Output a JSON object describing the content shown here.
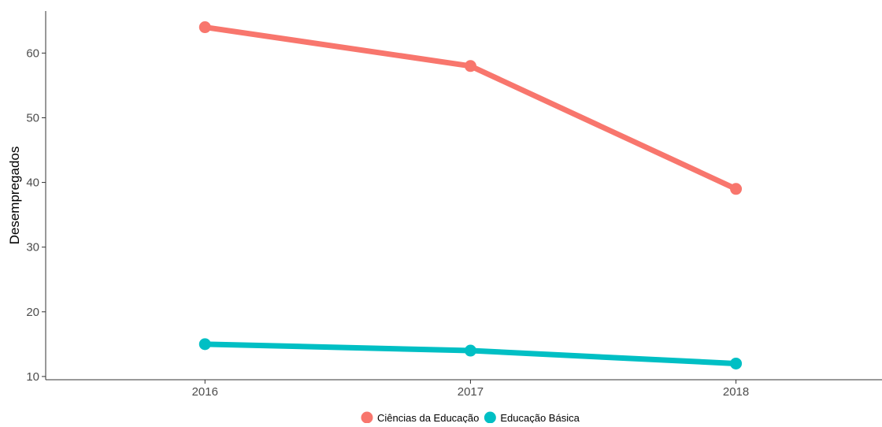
{
  "chart_data": {
    "type": "line",
    "title": "",
    "xlabel": "",
    "ylabel": "Desempregados",
    "x": [
      "2016",
      "2017",
      "2018"
    ],
    "xlim": [
      2015.4,
      2018.55
    ],
    "ylim": [
      9.5,
      66.5
    ],
    "yticks": [
      10,
      20,
      30,
      40,
      50,
      60
    ],
    "grid": false,
    "legend_position": "bottom",
    "series": [
      {
        "name": "Ciências da Educação",
        "color": "#F8766D",
        "values": [
          64,
          58,
          39
        ]
      },
      {
        "name": "Educação Básica",
        "color": "#00BFC4",
        "values": [
          15,
          14,
          12
        ]
      }
    ]
  }
}
